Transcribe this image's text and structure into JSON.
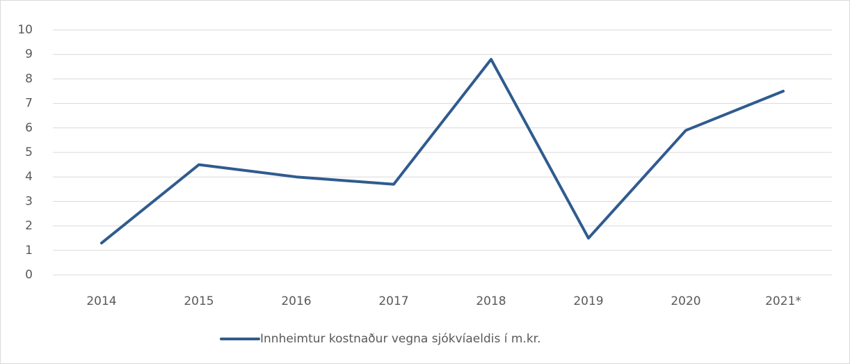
{
  "chart_data": {
    "type": "line",
    "categories": [
      "2014",
      "2015",
      "2016",
      "2017",
      "2018",
      "2019",
      "2020",
      "2021*"
    ],
    "series": [
      {
        "name": "Innheimtur kostnaður vegna sjókvíaeldis í m.kr.",
        "color": "#2f5b8f",
        "values": [
          1.3,
          4.5,
          4.0,
          3.7,
          8.8,
          1.5,
          5.9,
          7.5
        ]
      }
    ],
    "ylim": [
      0,
      10
    ],
    "yticks": [
      0,
      1,
      2,
      3,
      4,
      5,
      6,
      7,
      8,
      9,
      10
    ],
    "grid": true,
    "legend": "bottom"
  }
}
